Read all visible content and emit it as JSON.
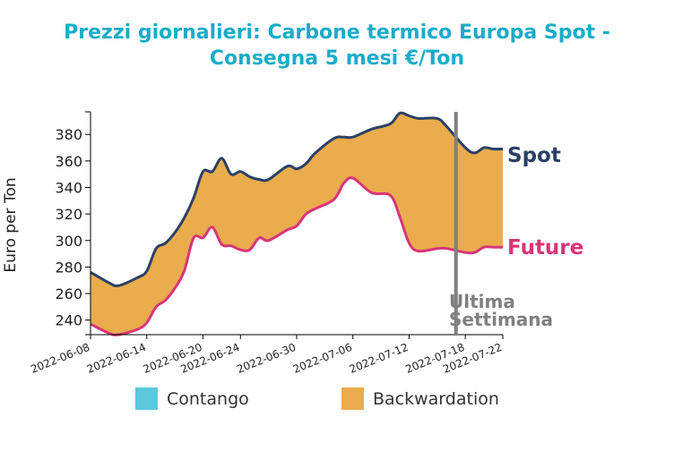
{
  "title_lines": [
    "Prezzi giornalieri: Carbone termico Europa Spot -",
    "Consegna 5 mesi €/Ton"
  ],
  "colors": {
    "title": "#1aacc9",
    "spot": "#2c4067",
    "future": "#d83578",
    "backwardation": "#eaac4c",
    "contango": "#5bc8e0",
    "marker": "#808080"
  },
  "chart_data": {
    "type": "area",
    "title": "Prezzi giornalieri: Carbone termico Europa Spot - Consegna 5 mesi €/Ton",
    "ylabel": "Euro per Ton",
    "xlabel": "",
    "ylim": [
      229,
      397
    ],
    "y_ticks": [
      240,
      260,
      280,
      300,
      320,
      340,
      360,
      380
    ],
    "x_ticks": [
      "2022-06-08",
      "2022-06-14",
      "2022-06-20",
      "2022-06-24",
      "2022-06-30",
      "2022-07-06",
      "2022-07-12",
      "2022-07-18",
      "2022-07-22"
    ],
    "x_start": "2022-06-08",
    "x_end": "2022-07-22",
    "series": [
      {
        "name": "Spot",
        "x": [
          "2022-06-08",
          "2022-06-10",
          "2022-06-11",
          "2022-06-13",
          "2022-06-14",
          "2022-06-15",
          "2022-06-16",
          "2022-06-17",
          "2022-06-18",
          "2022-06-19",
          "2022-06-20",
          "2022-06-21",
          "2022-06-22",
          "2022-06-23",
          "2022-06-24",
          "2022-06-25",
          "2022-06-26",
          "2022-06-27",
          "2022-06-29",
          "2022-06-30",
          "2022-07-01",
          "2022-07-02",
          "2022-07-04",
          "2022-07-05",
          "2022-07-06",
          "2022-07-08",
          "2022-07-10",
          "2022-07-11",
          "2022-07-12",
          "2022-07-13",
          "2022-07-15",
          "2022-07-16",
          "2022-07-18",
          "2022-07-19",
          "2022-07-20",
          "2022-07-21",
          "2022-07-22"
        ],
        "values": [
          276,
          268,
          266,
          272,
          277,
          294,
          298,
          306,
          317,
          332,
          352,
          352,
          362,
          350,
          352,
          348,
          346,
          346,
          356,
          354,
          358,
          366,
          377,
          378,
          378,
          384,
          388,
          396,
          394,
          392,
          392,
          386,
          370,
          366,
          370,
          369,
          369
        ]
      },
      {
        "name": "Future",
        "x": [
          "2022-06-08",
          "2022-06-10",
          "2022-06-11",
          "2022-06-13",
          "2022-06-14",
          "2022-06-15",
          "2022-06-16",
          "2022-06-17",
          "2022-06-18",
          "2022-06-19",
          "2022-06-20",
          "2022-06-21",
          "2022-06-22",
          "2022-06-23",
          "2022-06-24",
          "2022-06-25",
          "2022-06-26",
          "2022-06-27",
          "2022-06-29",
          "2022-06-30",
          "2022-07-01",
          "2022-07-02",
          "2022-07-04",
          "2022-07-05",
          "2022-07-06",
          "2022-07-08",
          "2022-07-10",
          "2022-07-11",
          "2022-07-12",
          "2022-07-13",
          "2022-07-15",
          "2022-07-16",
          "2022-07-18",
          "2022-07-19",
          "2022-07-20",
          "2022-07-21",
          "2022-07-22"
        ],
        "values": [
          237,
          230,
          229,
          233,
          238,
          250,
          255,
          264,
          277,
          302,
          302,
          310,
          297,
          296,
          293,
          293,
          302,
          300,
          308,
          311,
          320,
          324,
          331,
          343,
          347,
          336,
          334,
          318,
          298,
          292,
          294,
          294,
          291,
          291,
          295,
          295,
          295
        ]
      }
    ],
    "annotations": [
      {
        "text": "Spot"
      },
      {
        "text": "Future"
      },
      {
        "text": "Ultima"
      },
      {
        "text": "Settimana"
      }
    ],
    "marker_date": "2022-07-17",
    "legend": [
      {
        "label": "Contango"
      },
      {
        "label": "Backwardation"
      }
    ],
    "legend_position": "bottom"
  }
}
